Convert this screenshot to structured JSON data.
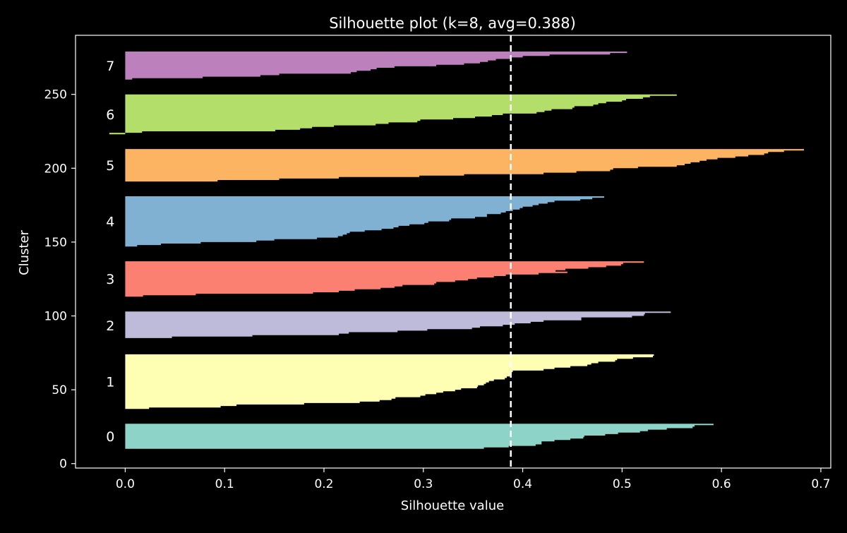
{
  "chart_data": {
    "type": "area",
    "title": "Silhouette plot (k=8, avg=0.388)",
    "xlabel": "Silhouette value",
    "ylabel": "Cluster",
    "xlim": [
      -0.05,
      0.71
    ],
    "ylim": [
      -3,
      290
    ],
    "xticks": [
      0.0,
      0.1,
      0.2,
      0.3,
      0.4,
      0.5,
      0.6,
      0.7
    ],
    "xtick_labels": [
      "0.0",
      "0.1",
      "0.2",
      "0.3",
      "0.4",
      "0.5",
      "0.6",
      "0.7"
    ],
    "yticks": [
      0,
      50,
      100,
      150,
      200,
      250
    ],
    "ytick_labels": [
      "0",
      "50",
      "100",
      "150",
      "200",
      "250"
    ],
    "average_silhouette": 0.388,
    "grid": false,
    "colors": {
      "background": "#000000",
      "foreground": "#ffffff",
      "average_line": "#ffffff"
    },
    "clusters": [
      {
        "label": "0",
        "color": "#8dd3c7",
        "y_lower": 10,
        "y_upper": 27,
        "values": [
          0.592,
          0.573,
          0.571,
          0.545,
          0.526,
          0.518,
          0.496,
          0.483,
          0.462,
          0.461,
          0.448,
          0.432,
          0.419,
          0.419,
          0.413,
          0.386,
          0.361
        ]
      },
      {
        "label": "1",
        "color": "#ffffb3",
        "y_lower": 37,
        "y_upper": 74,
        "values": [
          0.532,
          0.531,
          0.511,
          0.495,
          0.493,
          0.476,
          0.469,
          0.465,
          0.448,
          0.432,
          0.421,
          0.39,
          0.389,
          0.388,
          0.387,
          0.384,
          0.382,
          0.371,
          0.366,
          0.363,
          0.361,
          0.355,
          0.354,
          0.338,
          0.332,
          0.32,
          0.313,
          0.302,
          0.297,
          0.272,
          0.268,
          0.256,
          0.236,
          0.18,
          0.112,
          0.096,
          0.024
        ]
      },
      {
        "label": "2",
        "color": "#bebada",
        "y_lower": 84,
        "y_upper": 103,
        "values": [
          0.549,
          0.523,
          0.522,
          0.51,
          0.459,
          0.459,
          0.421,
          0.408,
          0.392,
          0.38,
          0.357,
          0.349,
          0.304,
          0.274,
          0.225,
          0.215,
          0.128,
          0.047,
          0.0
        ]
      },
      {
        "label": "3",
        "color": "#fb8072",
        "y_lower": 113,
        "y_upper": 137,
        "values": [
          0.522,
          0.501,
          0.499,
          0.484,
          0.466,
          0.443,
          0.433,
          0.445,
          0.416,
          0.383,
          0.371,
          0.354,
          0.345,
          0.332,
          0.313,
          0.311,
          0.279,
          0.271,
          0.257,
          0.231,
          0.215,
          0.189,
          0.071,
          0.018
        ]
      },
      {
        "label": "4",
        "color": "#80b1d3",
        "y_lower": 147,
        "y_upper": 181,
        "values": [
          0.482,
          0.47,
          0.458,
          0.432,
          0.425,
          0.416,
          0.41,
          0.4,
          0.397,
          0.39,
          0.383,
          0.378,
          0.364,
          0.364,
          0.352,
          0.328,
          0.326,
          0.305,
          0.301,
          0.286,
          0.275,
          0.27,
          0.258,
          0.241,
          0.226,
          0.223,
          0.219,
          0.214,
          0.193,
          0.15,
          0.132,
          0.076,
          0.036,
          0.012
        ]
      },
      {
        "label": "5",
        "color": "#fdb462",
        "y_lower": 191,
        "y_upper": 213,
        "values": [
          0.683,
          0.663,
          0.647,
          0.643,
          0.627,
          0.614,
          0.596,
          0.585,
          0.578,
          0.569,
          0.563,
          0.555,
          0.516,
          0.491,
          0.488,
          0.454,
          0.421,
          0.341,
          0.296,
          0.215,
          0.155,
          0.093
        ]
      },
      {
        "label": "6",
        "color": "#b3de69",
        "y_lower": 223,
        "y_upper": 250,
        "values": [
          0.555,
          0.528,
          0.521,
          0.504,
          0.5,
          0.484,
          0.476,
          0.471,
          0.452,
          0.45,
          0.429,
          0.422,
          0.414,
          0.38,
          0.369,
          0.352,
          0.33,
          0.297,
          0.294,
          0.265,
          0.252,
          0.21,
          0.188,
          0.176,
          0.151,
          0.017,
          -0.016
        ]
      },
      {
        "label": "7",
        "color": "#bc80bd",
        "y_lower": 260,
        "y_upper": 279,
        "values": [
          0.505,
          0.488,
          0.427,
          0.4,
          0.387,
          0.373,
          0.365,
          0.357,
          0.341,
          0.313,
          0.271,
          0.253,
          0.247,
          0.233,
          0.227,
          0.155,
          0.136,
          0.078,
          0.007
        ]
      }
    ]
  }
}
